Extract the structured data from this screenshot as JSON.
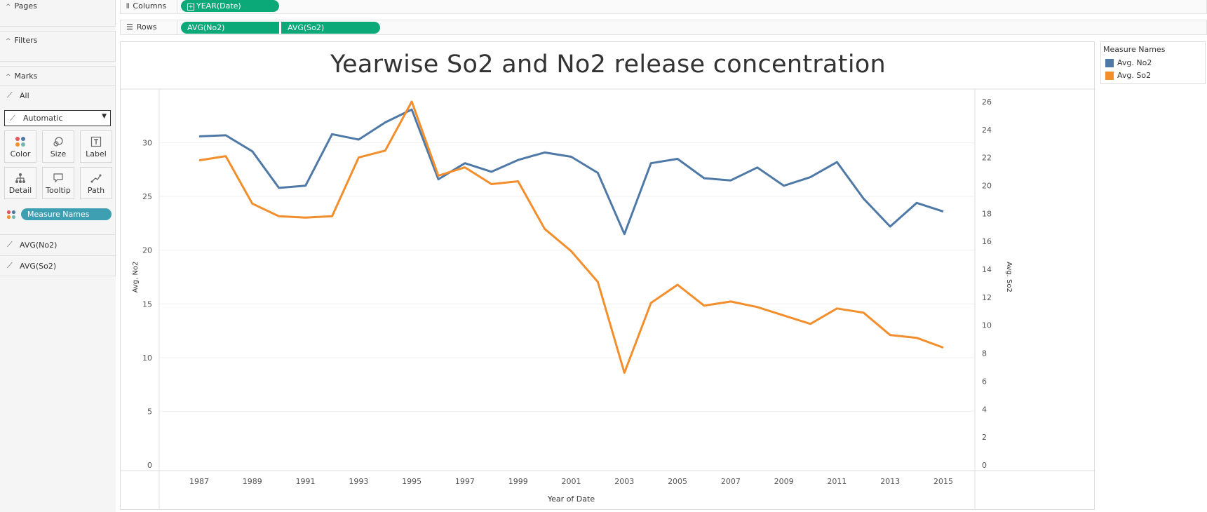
{
  "sidebar": {
    "pages": "Pages",
    "filters": "Filters",
    "marks": "Marks",
    "all": "All",
    "mark_type": "Automatic",
    "buttons": {
      "color": "Color",
      "size": "Size",
      "label": "Label",
      "detail": "Detail",
      "tooltip": "Tooltip",
      "path": "Path"
    },
    "measure_pill": "Measure Names",
    "avg_no2": "AVG(No2)",
    "avg_so2": "AVG(So2)"
  },
  "shelves": {
    "columns_label": "Columns",
    "columns_pill": "YEAR(Date)",
    "rows_label": "Rows",
    "rows_pills": [
      "AVG(No2)",
      "AVG(So2)"
    ]
  },
  "legend": {
    "title": "Measure Names",
    "items": [
      {
        "label": "Avg. No2",
        "color": "#4e79a7"
      },
      {
        "label": "Avg. So2",
        "color": "#f28e2b"
      }
    ]
  },
  "chart_data": {
    "type": "line",
    "title": "Yearwise So2 and No2 release concentration",
    "xlabel": "Year of Date",
    "ylabel": "Avg. No2",
    "y2label": "Avg. So2",
    "x": [
      1987,
      1988,
      1989,
      1990,
      1991,
      1992,
      1993,
      1994,
      1995,
      1996,
      1997,
      1998,
      1999,
      2000,
      2001,
      2002,
      2003,
      2004,
      2005,
      2006,
      2007,
      2008,
      2009,
      2010,
      2011,
      2012,
      2013,
      2014,
      2015
    ],
    "x_ticks": [
      1987,
      1989,
      1991,
      1993,
      1995,
      1997,
      1999,
      2001,
      2003,
      2005,
      2007,
      2009,
      2011,
      2013,
      2015
    ],
    "ylim": [
      0,
      35
    ],
    "y_ticks": [
      0,
      5,
      10,
      15,
      20,
      25,
      30
    ],
    "y2lim": [
      0,
      26.9
    ],
    "y2_ticks": [
      0,
      2,
      4,
      6,
      8,
      10,
      12,
      14,
      16,
      18,
      20,
      22,
      24,
      26
    ],
    "grid": true,
    "legend_position": "right",
    "series": [
      {
        "name": "Avg. No2",
        "axis": "left",
        "color": "#4e79a7",
        "values": [
          30.6,
          30.7,
          29.2,
          25.8,
          26.0,
          30.8,
          30.3,
          31.9,
          33.1,
          26.6,
          28.1,
          27.3,
          28.4,
          29.1,
          28.7,
          27.2,
          21.5,
          28.1,
          28.5,
          26.7,
          26.5,
          27.7,
          26.0,
          26.8,
          28.2,
          24.8,
          22.2,
          24.4,
          23.6
        ]
      },
      {
        "name": "Avg. So2",
        "axis": "right",
        "color": "#f28e2b",
        "values": [
          21.8,
          22.1,
          18.7,
          17.8,
          17.7,
          17.8,
          22.0,
          22.5,
          26.0,
          20.7,
          21.3,
          20.1,
          20.3,
          16.9,
          15.3,
          13.1,
          6.6,
          11.6,
          12.9,
          11.4,
          11.7,
          11.3,
          10.7,
          10.1,
          11.2,
          10.9,
          9.3,
          9.1,
          8.4
        ]
      }
    ]
  }
}
